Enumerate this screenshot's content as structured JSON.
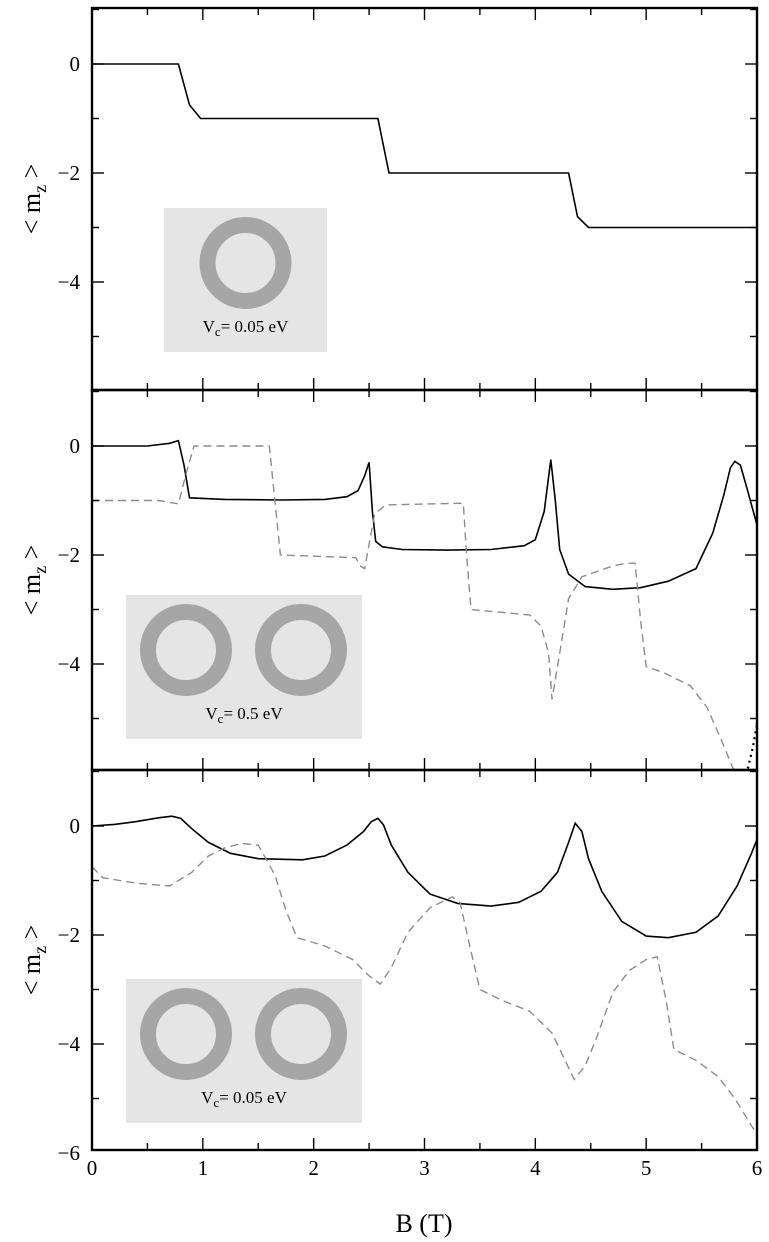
{
  "chart_data": [
    {
      "type": "line",
      "xlabel": "B (T)",
      "ylabel": "< m_z >",
      "xlim": [
        0,
        6
      ],
      "ylim": [
        -6,
        1
      ],
      "yticks": [
        "0",
        "−2",
        "−4"
      ],
      "inset": {
        "rings": 1,
        "label_prefix": "V",
        "label_sub": "c",
        "label_value": "= 0.05 eV"
      },
      "series": [
        {
          "style": "solid",
          "color": "#000000",
          "points": [
            [
              0,
              0
            ],
            [
              0.78,
              0
            ],
            [
              0.88,
              -0.75
            ],
            [
              0.98,
              -1
            ],
            [
              2.58,
              -1
            ],
            [
              2.68,
              -2
            ],
            [
              4.3,
              -2
            ],
            [
              4.38,
              -2.8
            ],
            [
              4.48,
              -3
            ],
            [
              6,
              -3
            ]
          ]
        }
      ]
    },
    {
      "type": "line",
      "xlabel": "B (T)",
      "ylabel": "< m_z >",
      "xlim": [
        0,
        6
      ],
      "ylim": [
        -6,
        1
      ],
      "yticks": [
        "0",
        "−2",
        "−4"
      ],
      "inset": {
        "rings": 2,
        "label_prefix": "V",
        "label_sub": "c",
        "label_value": "= 0.5 eV"
      },
      "series": [
        {
          "style": "solid",
          "color": "#000000",
          "points": [
            [
              0,
              0
            ],
            [
              0.5,
              0
            ],
            [
              0.7,
              0.05
            ],
            [
              0.78,
              0.1
            ],
            [
              0.83,
              -0.35
            ],
            [
              0.88,
              -0.95
            ],
            [
              1.2,
              -0.98
            ],
            [
              1.7,
              -0.99
            ],
            [
              2.1,
              -0.98
            ],
            [
              2.3,
              -0.93
            ],
            [
              2.4,
              -0.82
            ],
            [
              2.46,
              -0.55
            ],
            [
              2.5,
              -0.3
            ],
            [
              2.53,
              -1.2
            ],
            [
              2.56,
              -1.75
            ],
            [
              2.62,
              -1.85
            ],
            [
              2.8,
              -1.9
            ],
            [
              3.2,
              -1.91
            ],
            [
              3.6,
              -1.9
            ],
            [
              3.9,
              -1.83
            ],
            [
              4.0,
              -1.72
            ],
            [
              4.08,
              -1.2
            ],
            [
              4.14,
              -0.25
            ],
            [
              4.18,
              -1.0
            ],
            [
              4.22,
              -1.9
            ],
            [
              4.3,
              -2.35
            ],
            [
              4.45,
              -2.58
            ],
            [
              4.7,
              -2.63
            ],
            [
              4.95,
              -2.6
            ],
            [
              5.2,
              -2.48
            ],
            [
              5.45,
              -2.25
            ],
            [
              5.6,
              -1.6
            ],
            [
              5.7,
              -0.9
            ],
            [
              5.76,
              -0.4
            ],
            [
              5.8,
              -0.28
            ],
            [
              5.85,
              -0.35
            ],
            [
              5.92,
              -0.85
            ],
            [
              6,
              -1.45
            ]
          ]
        },
        {
          "style": "dashed",
          "color": "#8c8c8c",
          "points": [
            [
              0,
              -1
            ],
            [
              0.6,
              -1
            ],
            [
              0.78,
              -1.06
            ],
            [
              0.85,
              -0.5
            ],
            [
              0.92,
              0
            ],
            [
              1.05,
              0
            ],
            [
              1.6,
              0
            ],
            [
              1.65,
              -1
            ],
            [
              1.7,
              -2
            ],
            [
              2.38,
              -2.05
            ],
            [
              2.42,
              -2.2
            ],
            [
              2.46,
              -2.25
            ],
            [
              2.55,
              -1.25
            ],
            [
              2.65,
              -1.08
            ],
            [
              3.35,
              -1.05
            ],
            [
              3.38,
              -2
            ],
            [
              3.42,
              -3
            ],
            [
              3.95,
              -3.1
            ],
            [
              4.05,
              -3.3
            ],
            [
              4.12,
              -3.8
            ],
            [
              4.15,
              -4.65
            ],
            [
              4.22,
              -3.8
            ],
            [
              4.3,
              -2.8
            ],
            [
              4.42,
              -2.4
            ],
            [
              4.7,
              -2.2
            ],
            [
              4.82,
              -2.15
            ],
            [
              4.9,
              -2.15
            ],
            [
              4.95,
              -3.2
            ],
            [
              5.0,
              -4.05
            ],
            [
              5.15,
              -4.15
            ],
            [
              5.4,
              -4.4
            ],
            [
              5.55,
              -4.8
            ],
            [
              5.68,
              -5.4
            ],
            [
              5.78,
              -5.9
            ],
            [
              5.82,
              -6.0
            ]
          ]
        },
        {
          "style": "dotted",
          "color": "#000000",
          "points": [
            [
              5.88,
              -6.0
            ],
            [
              5.92,
              -5.9
            ],
            [
              5.96,
              -5.55
            ],
            [
              6.0,
              -5.1
            ]
          ]
        }
      ]
    },
    {
      "type": "line",
      "xlabel": "B (T)",
      "ylabel": "< m_z >",
      "xlim": [
        0,
        6
      ],
      "ylim": [
        -6,
        1
      ],
      "yticks": [
        "0",
        "−2",
        "−4",
        "−6"
      ],
      "xticks": [
        "0",
        "1",
        "2",
        "3",
        "4",
        "5",
        "6"
      ],
      "inset": {
        "rings": 2,
        "label_prefix": "V",
        "label_sub": "c",
        "label_value": "= 0.05 eV"
      },
      "series": [
        {
          "style": "solid",
          "color": "#000000",
          "points": [
            [
              0,
              0
            ],
            [
              0.2,
              0.03
            ],
            [
              0.4,
              0.08
            ],
            [
              0.6,
              0.15
            ],
            [
              0.72,
              0.18
            ],
            [
              0.8,
              0.14
            ],
            [
              0.9,
              -0.05
            ],
            [
              1.05,
              -0.3
            ],
            [
              1.25,
              -0.5
            ],
            [
              1.5,
              -0.6
            ],
            [
              1.9,
              -0.62
            ],
            [
              2.1,
              -0.55
            ],
            [
              2.3,
              -0.35
            ],
            [
              2.45,
              -0.1
            ],
            [
              2.52,
              0.08
            ],
            [
              2.58,
              0.14
            ],
            [
              2.63,
              0.02
            ],
            [
              2.7,
              -0.35
            ],
            [
              2.85,
              -0.85
            ],
            [
              3.05,
              -1.25
            ],
            [
              3.3,
              -1.42
            ],
            [
              3.6,
              -1.47
            ],
            [
              3.85,
              -1.4
            ],
            [
              4.05,
              -1.2
            ],
            [
              4.2,
              -0.85
            ],
            [
              4.3,
              -0.3
            ],
            [
              4.36,
              0.05
            ],
            [
              4.42,
              -0.1
            ],
            [
              4.48,
              -0.6
            ],
            [
              4.6,
              -1.2
            ],
            [
              4.78,
              -1.75
            ],
            [
              5.0,
              -2.02
            ],
            [
              5.2,
              -2.05
            ],
            [
              5.45,
              -1.95
            ],
            [
              5.65,
              -1.65
            ],
            [
              5.82,
              -1.1
            ],
            [
              5.95,
              -0.5
            ],
            [
              6,
              -0.25
            ]
          ]
        },
        {
          "style": "dashed",
          "color": "#8c8c8c",
          "points": [
            [
              0,
              -0.75
            ],
            [
              0.1,
              -0.95
            ],
            [
              0.4,
              -1.05
            ],
            [
              0.7,
              -1.1
            ],
            [
              0.9,
              -0.85
            ],
            [
              1.05,
              -0.55
            ],
            [
              1.2,
              -0.4
            ],
            [
              1.35,
              -0.32
            ],
            [
              1.5,
              -0.35
            ],
            [
              1.65,
              -0.9
            ],
            [
              1.75,
              -1.55
            ],
            [
              1.85,
              -2.05
            ],
            [
              2.1,
              -2.2
            ],
            [
              2.35,
              -2.45
            ],
            [
              2.5,
              -2.75
            ],
            [
              2.6,
              -2.9
            ],
            [
              2.7,
              -2.6
            ],
            [
              2.85,
              -1.95
            ],
            [
              3.05,
              -1.5
            ],
            [
              3.25,
              -1.3
            ],
            [
              3.32,
              -1.4
            ],
            [
              3.42,
              -2.3
            ],
            [
              3.5,
              -3.0
            ],
            [
              3.7,
              -3.2
            ],
            [
              3.95,
              -3.4
            ],
            [
              4.15,
              -3.8
            ],
            [
              4.28,
              -4.35
            ],
            [
              4.35,
              -4.65
            ],
            [
              4.45,
              -4.4
            ],
            [
              4.55,
              -3.9
            ],
            [
              4.7,
              -3.05
            ],
            [
              4.85,
              -2.65
            ],
            [
              5.0,
              -2.45
            ],
            [
              5.1,
              -2.4
            ],
            [
              5.18,
              -3.2
            ],
            [
              5.25,
              -4.1
            ],
            [
              5.45,
              -4.3
            ],
            [
              5.65,
              -4.6
            ],
            [
              5.8,
              -5.0
            ],
            [
              5.95,
              -5.5
            ],
            [
              6.0,
              -5.65
            ]
          ]
        }
      ]
    }
  ]
}
